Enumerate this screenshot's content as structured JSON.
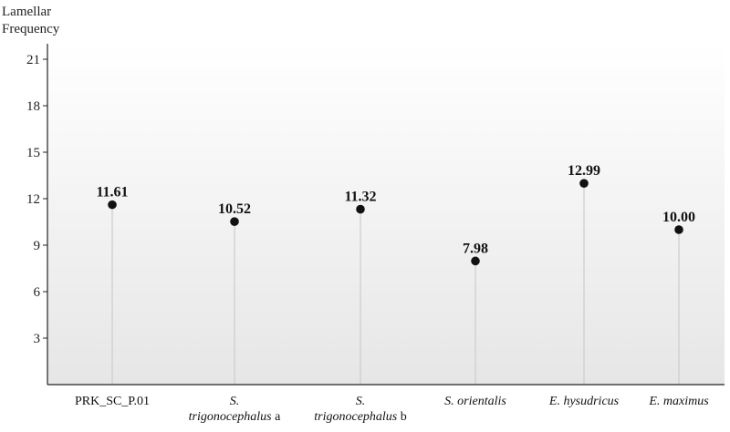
{
  "chart_data": {
    "type": "lollipop",
    "ylabel_lines": [
      "Lamellar",
      "Frequency"
    ],
    "categories": [
      {
        "lines": [
          {
            "text": "PRK_SC_P.01",
            "italic": false
          }
        ]
      },
      {
        "lines": [
          {
            "text": "S.",
            "italic": true
          },
          {
            "parts": [
              {
                "text": "trigonocephalus",
                "italic": true
              },
              {
                "text": " a",
                "italic": false
              }
            ]
          }
        ]
      },
      {
        "lines": [
          {
            "text": "S.",
            "italic": true
          },
          {
            "parts": [
              {
                "text": "trigonocephalus",
                "italic": true
              },
              {
                "text": " b",
                "italic": false
              }
            ]
          }
        ]
      },
      {
        "lines": [
          {
            "text": "S. orientalis",
            "italic": true
          }
        ]
      },
      {
        "lines": [
          {
            "text": "E. hysudricus",
            "italic": true
          }
        ]
      },
      {
        "lines": [
          {
            "text": "E. maximus",
            "italic": true
          }
        ]
      }
    ],
    "values": [
      11.61,
      10.52,
      11.32,
      7.98,
      12.99,
      10.0
    ],
    "value_labels": [
      "11.61",
      "10.52",
      "11.32",
      "7.98",
      "12.99",
      "10.00"
    ],
    "yticks": [
      3,
      6,
      9,
      12,
      15,
      18,
      21
    ],
    "ylim": [
      0,
      22
    ],
    "grid": false,
    "colors": {
      "point": "#111111",
      "stem": "#cccccc",
      "axis": "#222222"
    }
  }
}
